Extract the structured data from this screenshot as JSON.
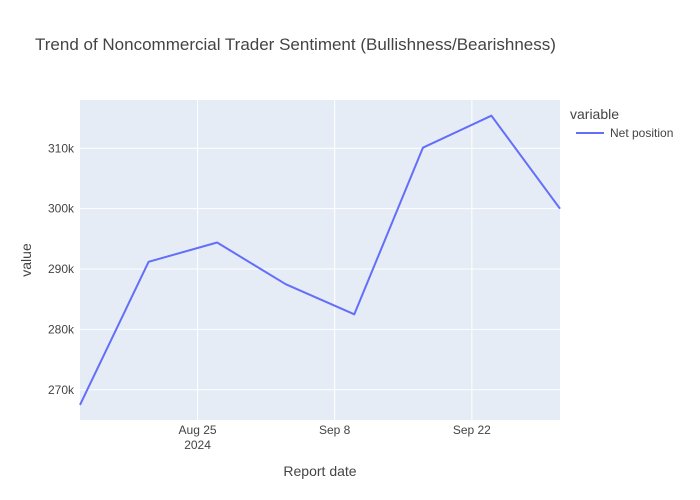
{
  "chart_data": {
    "type": "line",
    "title": "Trend of Noncommercial Trader Sentiment (Bullishness/Bearishness)",
    "xlabel": "Report date",
    "ylabel": "value",
    "x": [
      "2024-08-13",
      "2024-08-20",
      "2024-08-27",
      "2024-09-03",
      "2024-09-10",
      "2024-09-17",
      "2024-09-24",
      "2024-10-01"
    ],
    "series": [
      {
        "name": "Net position",
        "values": [
          267500,
          291200,
          294400,
          287500,
          282500,
          310100,
          315400,
          300000
        ]
      }
    ],
    "xlim": [
      "2024-08-13",
      "2024-10-01"
    ],
    "ylim": [
      265000,
      318000
    ],
    "x_ticks": [
      {
        "date": "2024-08-25",
        "label": "Aug 25",
        "sublabel": "2024"
      },
      {
        "date": "2024-09-08",
        "label": "Sep 8",
        "sublabel": ""
      },
      {
        "date": "2024-09-22",
        "label": "Sep 22",
        "sublabel": ""
      }
    ],
    "y_ticks": [
      {
        "value": 270000,
        "label": "270k"
      },
      {
        "value": 280000,
        "label": "280k"
      },
      {
        "value": 290000,
        "label": "290k"
      },
      {
        "value": 300000,
        "label": "300k"
      },
      {
        "value": 310000,
        "label": "310k"
      }
    ],
    "legend_title": "variable",
    "legend_position": "top-right",
    "grid": true,
    "colors": {
      "plot_bg": "#E5ECF6",
      "grid": "#ffffff",
      "line": "#636EFA"
    }
  }
}
